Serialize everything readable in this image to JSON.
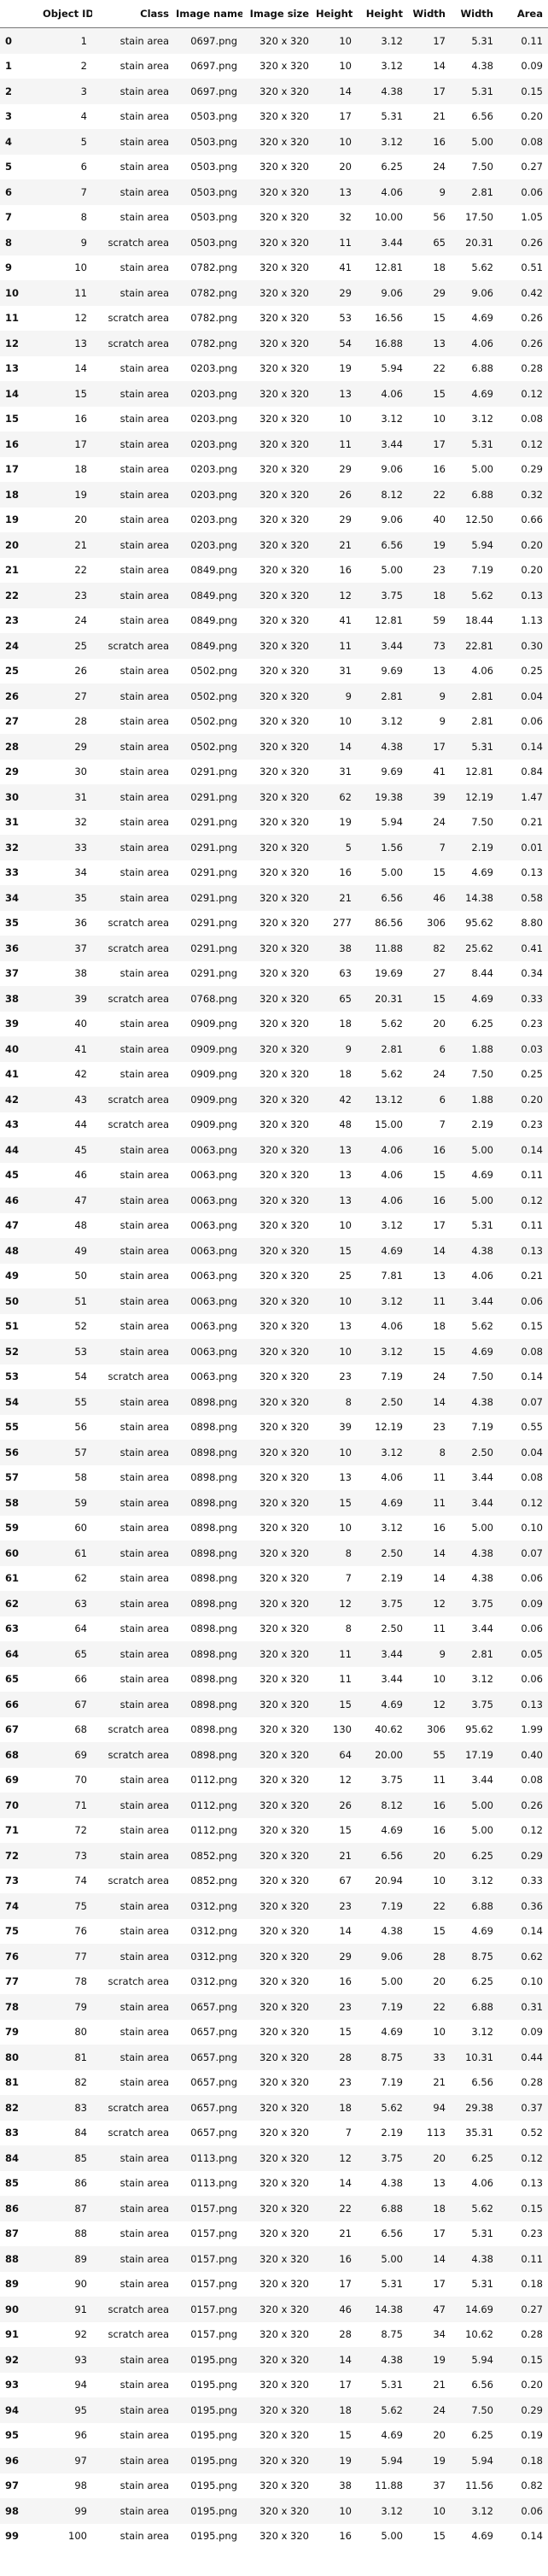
{
  "table": {
    "columns": [
      "",
      "Object ID",
      "Class",
      "Image name",
      "Image size",
      "Height",
      "Height",
      "Width",
      "Width",
      "Area"
    ],
    "rows": [
      [
        "0",
        "1",
        "stain area",
        "0697.png",
        "320 x 320",
        "10",
        "3.12",
        "17",
        "5.31",
        "0.11"
      ],
      [
        "1",
        "2",
        "stain area",
        "0697.png",
        "320 x 320",
        "10",
        "3.12",
        "14",
        "4.38",
        "0.09"
      ],
      [
        "2",
        "3",
        "stain area",
        "0697.png",
        "320 x 320",
        "14",
        "4.38",
        "17",
        "5.31",
        "0.15"
      ],
      [
        "3",
        "4",
        "stain area",
        "0503.png",
        "320 x 320",
        "17",
        "5.31",
        "21",
        "6.56",
        "0.20"
      ],
      [
        "4",
        "5",
        "stain area",
        "0503.png",
        "320 x 320",
        "10",
        "3.12",
        "16",
        "5.00",
        "0.08"
      ],
      [
        "5",
        "6",
        "stain area",
        "0503.png",
        "320 x 320",
        "20",
        "6.25",
        "24",
        "7.50",
        "0.27"
      ],
      [
        "6",
        "7",
        "stain area",
        "0503.png",
        "320 x 320",
        "13",
        "4.06",
        "9",
        "2.81",
        "0.06"
      ],
      [
        "7",
        "8",
        "stain area",
        "0503.png",
        "320 x 320",
        "32",
        "10.00",
        "56",
        "17.50",
        "1.05"
      ],
      [
        "8",
        "9",
        "scratch area",
        "0503.png",
        "320 x 320",
        "11",
        "3.44",
        "65",
        "20.31",
        "0.26"
      ],
      [
        "9",
        "10",
        "stain area",
        "0782.png",
        "320 x 320",
        "41",
        "12.81",
        "18",
        "5.62",
        "0.51"
      ],
      [
        "10",
        "11",
        "stain area",
        "0782.png",
        "320 x 320",
        "29",
        "9.06",
        "29",
        "9.06",
        "0.42"
      ],
      [
        "11",
        "12",
        "scratch area",
        "0782.png",
        "320 x 320",
        "53",
        "16.56",
        "15",
        "4.69",
        "0.26"
      ],
      [
        "12",
        "13",
        "scratch area",
        "0782.png",
        "320 x 320",
        "54",
        "16.88",
        "13",
        "4.06",
        "0.26"
      ],
      [
        "13",
        "14",
        "stain area",
        "0203.png",
        "320 x 320",
        "19",
        "5.94",
        "22",
        "6.88",
        "0.28"
      ],
      [
        "14",
        "15",
        "stain area",
        "0203.png",
        "320 x 320",
        "13",
        "4.06",
        "15",
        "4.69",
        "0.12"
      ],
      [
        "15",
        "16",
        "stain area",
        "0203.png",
        "320 x 320",
        "10",
        "3.12",
        "10",
        "3.12",
        "0.08"
      ],
      [
        "16",
        "17",
        "stain area",
        "0203.png",
        "320 x 320",
        "11",
        "3.44",
        "17",
        "5.31",
        "0.12"
      ],
      [
        "17",
        "18",
        "stain area",
        "0203.png",
        "320 x 320",
        "29",
        "9.06",
        "16",
        "5.00",
        "0.29"
      ],
      [
        "18",
        "19",
        "stain area",
        "0203.png",
        "320 x 320",
        "26",
        "8.12",
        "22",
        "6.88",
        "0.32"
      ],
      [
        "19",
        "20",
        "stain area",
        "0203.png",
        "320 x 320",
        "29",
        "9.06",
        "40",
        "12.50",
        "0.66"
      ],
      [
        "20",
        "21",
        "stain area",
        "0203.png",
        "320 x 320",
        "21",
        "6.56",
        "19",
        "5.94",
        "0.20"
      ],
      [
        "21",
        "22",
        "stain area",
        "0849.png",
        "320 x 320",
        "16",
        "5.00",
        "23",
        "7.19",
        "0.20"
      ],
      [
        "22",
        "23",
        "stain area",
        "0849.png",
        "320 x 320",
        "12",
        "3.75",
        "18",
        "5.62",
        "0.13"
      ],
      [
        "23",
        "24",
        "stain area",
        "0849.png",
        "320 x 320",
        "41",
        "12.81",
        "59",
        "18.44",
        "1.13"
      ],
      [
        "24",
        "25",
        "scratch area",
        "0849.png",
        "320 x 320",
        "11",
        "3.44",
        "73",
        "22.81",
        "0.30"
      ],
      [
        "25",
        "26",
        "stain area",
        "0502.png",
        "320 x 320",
        "31",
        "9.69",
        "13",
        "4.06",
        "0.25"
      ],
      [
        "26",
        "27",
        "stain area",
        "0502.png",
        "320 x 320",
        "9",
        "2.81",
        "9",
        "2.81",
        "0.04"
      ],
      [
        "27",
        "28",
        "stain area",
        "0502.png",
        "320 x 320",
        "10",
        "3.12",
        "9",
        "2.81",
        "0.06"
      ],
      [
        "28",
        "29",
        "stain area",
        "0502.png",
        "320 x 320",
        "14",
        "4.38",
        "17",
        "5.31",
        "0.14"
      ],
      [
        "29",
        "30",
        "stain area",
        "0291.png",
        "320 x 320",
        "31",
        "9.69",
        "41",
        "12.81",
        "0.84"
      ],
      [
        "30",
        "31",
        "stain area",
        "0291.png",
        "320 x 320",
        "62",
        "19.38",
        "39",
        "12.19",
        "1.47"
      ],
      [
        "31",
        "32",
        "stain area",
        "0291.png",
        "320 x 320",
        "19",
        "5.94",
        "24",
        "7.50",
        "0.21"
      ],
      [
        "32",
        "33",
        "stain area",
        "0291.png",
        "320 x 320",
        "5",
        "1.56",
        "7",
        "2.19",
        "0.01"
      ],
      [
        "33",
        "34",
        "stain area",
        "0291.png",
        "320 x 320",
        "16",
        "5.00",
        "15",
        "4.69",
        "0.13"
      ],
      [
        "34",
        "35",
        "stain area",
        "0291.png",
        "320 x 320",
        "21",
        "6.56",
        "46",
        "14.38",
        "0.58"
      ],
      [
        "35",
        "36",
        "scratch area",
        "0291.png",
        "320 x 320",
        "277",
        "86.56",
        "306",
        "95.62",
        "8.80"
      ],
      [
        "36",
        "37",
        "scratch area",
        "0291.png",
        "320 x 320",
        "38",
        "11.88",
        "82",
        "25.62",
        "0.41"
      ],
      [
        "37",
        "38",
        "stain area",
        "0291.png",
        "320 x 320",
        "63",
        "19.69",
        "27",
        "8.44",
        "0.34"
      ],
      [
        "38",
        "39",
        "scratch area",
        "0768.png",
        "320 x 320",
        "65",
        "20.31",
        "15",
        "4.69",
        "0.33"
      ],
      [
        "39",
        "40",
        "stain area",
        "0909.png",
        "320 x 320",
        "18",
        "5.62",
        "20",
        "6.25",
        "0.23"
      ],
      [
        "40",
        "41",
        "stain area",
        "0909.png",
        "320 x 320",
        "9",
        "2.81",
        "6",
        "1.88",
        "0.03"
      ],
      [
        "41",
        "42",
        "stain area",
        "0909.png",
        "320 x 320",
        "18",
        "5.62",
        "24",
        "7.50",
        "0.25"
      ],
      [
        "42",
        "43",
        "scratch area",
        "0909.png",
        "320 x 320",
        "42",
        "13.12",
        "6",
        "1.88",
        "0.20"
      ],
      [
        "43",
        "44",
        "scratch area",
        "0909.png",
        "320 x 320",
        "48",
        "15.00",
        "7",
        "2.19",
        "0.23"
      ],
      [
        "44",
        "45",
        "stain area",
        "0063.png",
        "320 x 320",
        "13",
        "4.06",
        "16",
        "5.00",
        "0.14"
      ],
      [
        "45",
        "46",
        "stain area",
        "0063.png",
        "320 x 320",
        "13",
        "4.06",
        "15",
        "4.69",
        "0.11"
      ],
      [
        "46",
        "47",
        "stain area",
        "0063.png",
        "320 x 320",
        "13",
        "4.06",
        "16",
        "5.00",
        "0.12"
      ],
      [
        "47",
        "48",
        "stain area",
        "0063.png",
        "320 x 320",
        "10",
        "3.12",
        "17",
        "5.31",
        "0.11"
      ],
      [
        "48",
        "49",
        "stain area",
        "0063.png",
        "320 x 320",
        "15",
        "4.69",
        "14",
        "4.38",
        "0.13"
      ],
      [
        "49",
        "50",
        "stain area",
        "0063.png",
        "320 x 320",
        "25",
        "7.81",
        "13",
        "4.06",
        "0.21"
      ],
      [
        "50",
        "51",
        "stain area",
        "0063.png",
        "320 x 320",
        "10",
        "3.12",
        "11",
        "3.44",
        "0.06"
      ],
      [
        "51",
        "52",
        "stain area",
        "0063.png",
        "320 x 320",
        "13",
        "4.06",
        "18",
        "5.62",
        "0.15"
      ],
      [
        "52",
        "53",
        "stain area",
        "0063.png",
        "320 x 320",
        "10",
        "3.12",
        "15",
        "4.69",
        "0.08"
      ],
      [
        "53",
        "54",
        "scratch area",
        "0063.png",
        "320 x 320",
        "23",
        "7.19",
        "24",
        "7.50",
        "0.14"
      ],
      [
        "54",
        "55",
        "stain area",
        "0898.png",
        "320 x 320",
        "8",
        "2.50",
        "14",
        "4.38",
        "0.07"
      ],
      [
        "55",
        "56",
        "stain area",
        "0898.png",
        "320 x 320",
        "39",
        "12.19",
        "23",
        "7.19",
        "0.55"
      ],
      [
        "56",
        "57",
        "stain area",
        "0898.png",
        "320 x 320",
        "10",
        "3.12",
        "8",
        "2.50",
        "0.04"
      ],
      [
        "57",
        "58",
        "stain area",
        "0898.png",
        "320 x 320",
        "13",
        "4.06",
        "11",
        "3.44",
        "0.08"
      ],
      [
        "58",
        "59",
        "stain area",
        "0898.png",
        "320 x 320",
        "15",
        "4.69",
        "11",
        "3.44",
        "0.12"
      ],
      [
        "59",
        "60",
        "stain area",
        "0898.png",
        "320 x 320",
        "10",
        "3.12",
        "16",
        "5.00",
        "0.10"
      ],
      [
        "60",
        "61",
        "stain area",
        "0898.png",
        "320 x 320",
        "8",
        "2.50",
        "14",
        "4.38",
        "0.07"
      ],
      [
        "61",
        "62",
        "stain area",
        "0898.png",
        "320 x 320",
        "7",
        "2.19",
        "14",
        "4.38",
        "0.06"
      ],
      [
        "62",
        "63",
        "stain area",
        "0898.png",
        "320 x 320",
        "12",
        "3.75",
        "12",
        "3.75",
        "0.09"
      ],
      [
        "63",
        "64",
        "stain area",
        "0898.png",
        "320 x 320",
        "8",
        "2.50",
        "11",
        "3.44",
        "0.06"
      ],
      [
        "64",
        "65",
        "stain area",
        "0898.png",
        "320 x 320",
        "11",
        "3.44",
        "9",
        "2.81",
        "0.05"
      ],
      [
        "65",
        "66",
        "stain area",
        "0898.png",
        "320 x 320",
        "11",
        "3.44",
        "10",
        "3.12",
        "0.06"
      ],
      [
        "66",
        "67",
        "stain area",
        "0898.png",
        "320 x 320",
        "15",
        "4.69",
        "12",
        "3.75",
        "0.13"
      ],
      [
        "67",
        "68",
        "scratch area",
        "0898.png",
        "320 x 320",
        "130",
        "40.62",
        "306",
        "95.62",
        "1.99"
      ],
      [
        "68",
        "69",
        "scratch area",
        "0898.png",
        "320 x 320",
        "64",
        "20.00",
        "55",
        "17.19",
        "0.40"
      ],
      [
        "69",
        "70",
        "stain area",
        "0112.png",
        "320 x 320",
        "12",
        "3.75",
        "11",
        "3.44",
        "0.08"
      ],
      [
        "70",
        "71",
        "stain area",
        "0112.png",
        "320 x 320",
        "26",
        "8.12",
        "16",
        "5.00",
        "0.26"
      ],
      [
        "71",
        "72",
        "stain area",
        "0112.png",
        "320 x 320",
        "15",
        "4.69",
        "16",
        "5.00",
        "0.12"
      ],
      [
        "72",
        "73",
        "stain area",
        "0852.png",
        "320 x 320",
        "21",
        "6.56",
        "20",
        "6.25",
        "0.29"
      ],
      [
        "73",
        "74",
        "scratch area",
        "0852.png",
        "320 x 320",
        "67",
        "20.94",
        "10",
        "3.12",
        "0.33"
      ],
      [
        "74",
        "75",
        "stain area",
        "0312.png",
        "320 x 320",
        "23",
        "7.19",
        "22",
        "6.88",
        "0.36"
      ],
      [
        "75",
        "76",
        "stain area",
        "0312.png",
        "320 x 320",
        "14",
        "4.38",
        "15",
        "4.69",
        "0.14"
      ],
      [
        "76",
        "77",
        "stain area",
        "0312.png",
        "320 x 320",
        "29",
        "9.06",
        "28",
        "8.75",
        "0.62"
      ],
      [
        "77",
        "78",
        "scratch area",
        "0312.png",
        "320 x 320",
        "16",
        "5.00",
        "20",
        "6.25",
        "0.10"
      ],
      [
        "78",
        "79",
        "stain area",
        "0657.png",
        "320 x 320",
        "23",
        "7.19",
        "22",
        "6.88",
        "0.31"
      ],
      [
        "79",
        "80",
        "stain area",
        "0657.png",
        "320 x 320",
        "15",
        "4.69",
        "10",
        "3.12",
        "0.09"
      ],
      [
        "80",
        "81",
        "stain area",
        "0657.png",
        "320 x 320",
        "28",
        "8.75",
        "33",
        "10.31",
        "0.44"
      ],
      [
        "81",
        "82",
        "stain area",
        "0657.png",
        "320 x 320",
        "23",
        "7.19",
        "21",
        "6.56",
        "0.28"
      ],
      [
        "82",
        "83",
        "scratch area",
        "0657.png",
        "320 x 320",
        "18",
        "5.62",
        "94",
        "29.38",
        "0.37"
      ],
      [
        "83",
        "84",
        "scratch area",
        "0657.png",
        "320 x 320",
        "7",
        "2.19",
        "113",
        "35.31",
        "0.52"
      ],
      [
        "84",
        "85",
        "stain area",
        "0113.png",
        "320 x 320",
        "12",
        "3.75",
        "20",
        "6.25",
        "0.12"
      ],
      [
        "85",
        "86",
        "stain area",
        "0113.png",
        "320 x 320",
        "14",
        "4.38",
        "13",
        "4.06",
        "0.13"
      ],
      [
        "86",
        "87",
        "stain area",
        "0157.png",
        "320 x 320",
        "22",
        "6.88",
        "18",
        "5.62",
        "0.15"
      ],
      [
        "87",
        "88",
        "stain area",
        "0157.png",
        "320 x 320",
        "21",
        "6.56",
        "17",
        "5.31",
        "0.23"
      ],
      [
        "88",
        "89",
        "stain area",
        "0157.png",
        "320 x 320",
        "16",
        "5.00",
        "14",
        "4.38",
        "0.11"
      ],
      [
        "89",
        "90",
        "stain area",
        "0157.png",
        "320 x 320",
        "17",
        "5.31",
        "17",
        "5.31",
        "0.18"
      ],
      [
        "90",
        "91",
        "scratch area",
        "0157.png",
        "320 x 320",
        "46",
        "14.38",
        "47",
        "14.69",
        "0.27"
      ],
      [
        "91",
        "92",
        "scratch area",
        "0157.png",
        "320 x 320",
        "28",
        "8.75",
        "34",
        "10.62",
        "0.28"
      ],
      [
        "92",
        "93",
        "stain area",
        "0195.png",
        "320 x 320",
        "14",
        "4.38",
        "19",
        "5.94",
        "0.15"
      ],
      [
        "93",
        "94",
        "stain area",
        "0195.png",
        "320 x 320",
        "17",
        "5.31",
        "21",
        "6.56",
        "0.20"
      ],
      [
        "94",
        "95",
        "stain area",
        "0195.png",
        "320 x 320",
        "18",
        "5.62",
        "24",
        "7.50",
        "0.29"
      ],
      [
        "95",
        "96",
        "stain area",
        "0195.png",
        "320 x 320",
        "15",
        "4.69",
        "20",
        "6.25",
        "0.19"
      ],
      [
        "96",
        "97",
        "stain area",
        "0195.png",
        "320 x 320",
        "19",
        "5.94",
        "19",
        "5.94",
        "0.18"
      ],
      [
        "97",
        "98",
        "stain area",
        "0195.png",
        "320 x 320",
        "38",
        "11.88",
        "37",
        "11.56",
        "0.82"
      ],
      [
        "98",
        "99",
        "stain area",
        "0195.png",
        "320 x 320",
        "10",
        "3.12",
        "10",
        "3.12",
        "0.06"
      ],
      [
        "99",
        "100",
        "stain area",
        "0195.png",
        "320 x 320",
        "16",
        "5.00",
        "15",
        "4.69",
        "0.14"
      ]
    ]
  }
}
